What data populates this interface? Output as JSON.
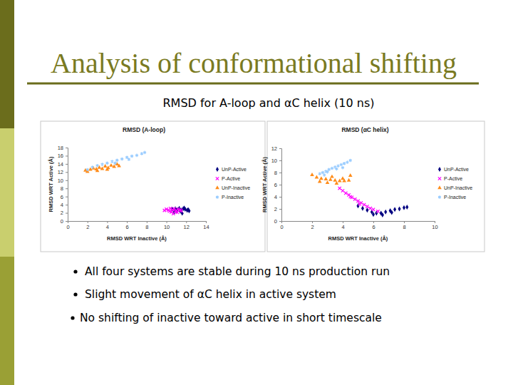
{
  "slide": {
    "title": "Analysis of conformational shifting",
    "subtitle": "RMSD for A-loop and αC helix (10 ns)",
    "bullets": [
      "All four systems are stable during 10 ns production run",
      "Slight movement of αC helix in active system",
      "No shifting of inactive toward active in short timescale"
    ]
  },
  "chart_data": [
    {
      "type": "scatter",
      "title": "RMSD (A-loop)",
      "x_label": "RMSD WRT Inactive (Å)",
      "y_label": "RMSD WRT Active (Å)",
      "xlim": [
        0,
        14
      ],
      "ylim": [
        0,
        18
      ],
      "xticks": [
        0,
        2,
        4,
        6,
        8,
        10,
        12,
        14
      ],
      "yticks": [
        0,
        2,
        4,
        6,
        8,
        10,
        12,
        14,
        16,
        18
      ],
      "grid": false,
      "legend": "right",
      "series": [
        {
          "name": "UnP-Active",
          "color": "#000080",
          "marker": "diamond",
          "x": [
            10.6,
            10.9,
            11.1,
            11.3,
            11.5,
            11.7,
            11.9,
            12.1,
            12.2,
            11.4,
            11.0,
            11.8,
            12.3,
            10.8,
            11.6
          ],
          "values": [
            2.9,
            3.0,
            2.8,
            3.1,
            2.7,
            3.0,
            2.9,
            2.6,
            2.8,
            2.4,
            2.5,
            3.2,
            2.5,
            2.2,
            1.9
          ]
        },
        {
          "name": "P-Active",
          "color": "#ff00ff",
          "marker": "cross",
          "x": [
            9.8,
            10.0,
            10.2,
            10.4,
            10.6,
            10.8,
            11.0,
            11.2,
            11.4,
            10.5,
            10.9,
            10.3,
            11.1,
            10.7,
            11.5
          ],
          "values": [
            2.6,
            2.9,
            2.7,
            3.1,
            2.8,
            3.0,
            2.6,
            2.9,
            2.7,
            2.2,
            2.3,
            2.4,
            2.1,
            1.8,
            2.5
          ]
        },
        {
          "name": "UnP-Inactive",
          "color": "#ff8c1a",
          "marker": "triangle",
          "x": [
            1.8,
            2.0,
            2.3,
            2.6,
            2.9,
            3.2,
            3.5,
            3.8,
            4.1,
            4.4,
            4.7,
            5.0,
            5.2,
            3.0,
            4.0
          ],
          "values": [
            12.4,
            12.1,
            12.6,
            12.9,
            12.7,
            13.1,
            12.8,
            13.4,
            13.0,
            13.6,
            13.3,
            13.9,
            13.5,
            12.3,
            12.6
          ]
        },
        {
          "name": "P-Inactive",
          "color": "#99ccff",
          "marker": "asterisk",
          "x": [
            2.0,
            2.5,
            3.0,
            3.5,
            4.0,
            4.5,
            5.0,
            5.5,
            6.0,
            6.5,
            7.0,
            7.5,
            7.8,
            4.8,
            6.2
          ],
          "values": [
            12.6,
            13.2,
            13.6,
            13.9,
            14.2,
            14.6,
            14.9,
            15.2,
            15.6,
            15.9,
            16.1,
            16.5,
            16.8,
            14.2,
            15.1
          ]
        }
      ]
    },
    {
      "type": "scatter",
      "title": "RMSD (αC helix)",
      "x_label": "RMSD WRT Inactive (Å)",
      "y_label": "RMSD WRT Active (Å)",
      "xlim": [
        0,
        10
      ],
      "ylim": [
        0,
        12
      ],
      "xticks": [
        0,
        2,
        4,
        6,
        8,
        10
      ],
      "yticks": [
        0,
        2,
        4,
        6,
        8,
        10,
        12
      ],
      "grid": false,
      "legend": "right",
      "series": [
        {
          "name": "UnP-Active",
          "color": "#000080",
          "marker": "diamond",
          "x": [
            5.0,
            5.3,
            5.6,
            5.9,
            6.2,
            6.5,
            6.8,
            7.1,
            7.4,
            7.7,
            8.0,
            8.2,
            6.0,
            6.6,
            7.2
          ],
          "values": [
            2.5,
            2.1,
            1.8,
            1.5,
            1.3,
            1.3,
            1.5,
            1.7,
            1.9,
            2.0,
            2.2,
            2.3,
            1.1,
            1.0,
            1.4
          ]
        },
        {
          "name": "P-Active",
          "color": "#ff00ff",
          "marker": "cross",
          "x": [
            3.8,
            4.0,
            4.2,
            4.4,
            4.6,
            4.8,
            5.0,
            5.2,
            5.4,
            5.6,
            5.8,
            6.0,
            6.3,
            4.5,
            5.1
          ],
          "values": [
            5.4,
            5.0,
            4.6,
            4.3,
            3.9,
            3.6,
            3.3,
            3.0,
            2.7,
            2.4,
            2.1,
            1.9,
            1.6,
            4.0,
            2.8
          ]
        },
        {
          "name": "UnP-Inactive",
          "color": "#ff8c1a",
          "marker": "triangle",
          "x": [
            2.0,
            2.3,
            2.6,
            2.9,
            3.2,
            3.5,
            3.8,
            4.1,
            4.4,
            3.0,
            3.6,
            2.5,
            4.0,
            3.3,
            4.5
          ],
          "values": [
            7.6,
            7.2,
            7.0,
            6.9,
            6.8,
            6.7,
            6.6,
            6.6,
            6.7,
            6.3,
            6.2,
            6.5,
            7.0,
            7.3,
            7.5
          ]
        },
        {
          "name": "P-Inactive",
          "color": "#99ccff",
          "marker": "asterisk",
          "x": [
            2.5,
            2.7,
            2.9,
            3.1,
            3.3,
            3.5,
            3.7,
            3.9,
            4.1,
            4.3,
            4.5,
            3.0,
            3.6,
            4.0,
            2.8
          ],
          "values": [
            7.8,
            8.0,
            8.2,
            8.5,
            8.7,
            8.9,
            9.1,
            9.3,
            9.5,
            9.7,
            10.0,
            8.1,
            8.6,
            8.8,
            7.6
          ]
        }
      ]
    }
  ]
}
